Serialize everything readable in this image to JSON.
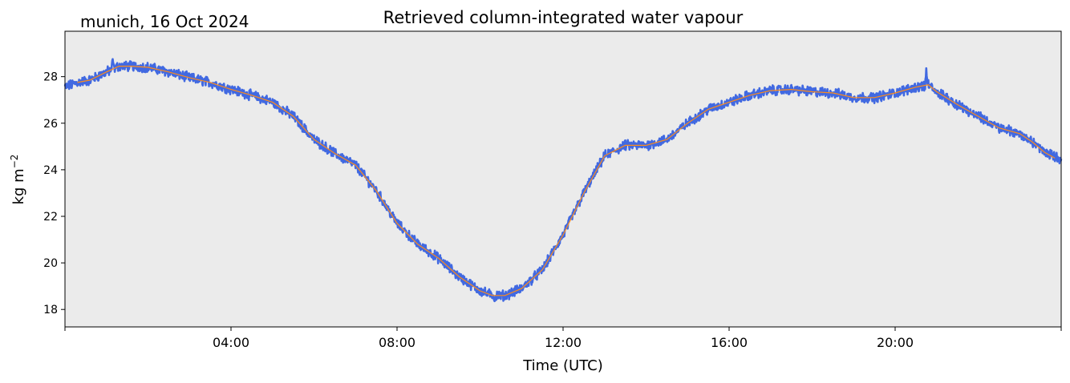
{
  "chart_data": {
    "type": "line",
    "title": "Retrieved column-integrated water vapour",
    "subtitle": "munich, 16 Oct 2024",
    "xlabel": "Time (UTC)",
    "ylabel": "kg m",
    "ylabel_superscript": "−2",
    "x_unit": "hours UTC",
    "xlim": [
      0,
      24
    ],
    "ylim": [
      17.25,
      29.95
    ],
    "x_ticks": [
      {
        "value": 0,
        "label": ""
      },
      {
        "value": 4,
        "label": "04:00"
      },
      {
        "value": 8,
        "label": "08:00"
      },
      {
        "value": 12,
        "label": "12:00"
      },
      {
        "value": 16,
        "label": "16:00"
      },
      {
        "value": 20,
        "label": "20:00"
      },
      {
        "value": 24,
        "label": ""
      }
    ],
    "y_ticks": [
      {
        "value": 18,
        "label": "18"
      },
      {
        "value": 20,
        "label": "20"
      },
      {
        "value": 22,
        "label": "22"
      },
      {
        "value": 24,
        "label": "24"
      },
      {
        "value": 26,
        "label": "26"
      },
      {
        "value": 28,
        "label": "28"
      }
    ],
    "grid": false,
    "background_color": "#ebebeb",
    "series": [
      {
        "style": "noisy band",
        "color": "#4169e1",
        "noise": 0.18,
        "spikes": [
          {
            "x": 1.15,
            "y": 29.0
          },
          {
            "x": 20.75,
            "y": 28.45
          },
          {
            "x": 10.35,
            "y": 18.2
          }
        ],
        "x": [
          0.0,
          0.3,
          0.6,
          1.0,
          1.3,
          1.6,
          2.0,
          2.5,
          3.0,
          3.5,
          4.0,
          4.5,
          5.0,
          5.5,
          6.0,
          6.5,
          7.0,
          7.5,
          8.0,
          8.5,
          9.0,
          9.5,
          10.0,
          10.3,
          10.6,
          11.0,
          11.5,
          12.0,
          12.5,
          13.0,
          13.5,
          14.0,
          14.5,
          15.0,
          15.5,
          16.0,
          16.5,
          17.0,
          17.5,
          18.0,
          18.5,
          19.0,
          19.5,
          20.0,
          20.5,
          20.8,
          21.0,
          21.5,
          22.0,
          22.5,
          23.0,
          23.3,
          23.6,
          24.0
        ],
        "y": [
          27.55,
          27.75,
          27.85,
          28.2,
          28.45,
          28.45,
          28.4,
          28.2,
          27.95,
          27.75,
          27.45,
          27.2,
          26.9,
          26.3,
          25.3,
          24.7,
          24.2,
          23.1,
          21.7,
          20.8,
          20.2,
          19.4,
          18.8,
          18.6,
          18.6,
          18.9,
          19.7,
          21.2,
          23.0,
          24.6,
          25.05,
          25.05,
          25.3,
          26.0,
          26.6,
          26.9,
          27.2,
          27.4,
          27.45,
          27.35,
          27.3,
          27.1,
          27.1,
          27.3,
          27.55,
          27.65,
          27.35,
          26.8,
          26.3,
          25.8,
          25.55,
          25.2,
          24.75,
          24.45
        ]
      },
      {
        "style": "smoothed line",
        "color": "#ff8c1a",
        "x": [
          0.3,
          0.6,
          1.0,
          1.3,
          1.6,
          2.0,
          2.5,
          3.0,
          3.5,
          4.0,
          4.5,
          5.0,
          5.5,
          6.0,
          6.5,
          7.0,
          7.5,
          8.0,
          8.5,
          9.0,
          9.5,
          10.0,
          10.3,
          10.6,
          11.0,
          11.5,
          12.0,
          12.5,
          13.0,
          13.5,
          14.0,
          14.5,
          15.0,
          15.5,
          16.0,
          16.5,
          17.0,
          17.5,
          18.0,
          18.5,
          19.0,
          19.5,
          20.0,
          20.5,
          20.8,
          21.0,
          21.5,
          22.0,
          22.5,
          23.0,
          23.3,
          23.6,
          23.85
        ],
        "y": [
          27.75,
          27.85,
          28.2,
          28.45,
          28.45,
          28.4,
          28.2,
          27.95,
          27.75,
          27.45,
          27.2,
          26.9,
          26.3,
          25.3,
          24.7,
          24.2,
          23.1,
          21.7,
          20.8,
          20.2,
          19.4,
          18.8,
          18.6,
          18.6,
          18.9,
          19.7,
          21.2,
          23.0,
          24.6,
          25.05,
          25.05,
          25.3,
          26.0,
          26.6,
          26.9,
          27.2,
          27.4,
          27.45,
          27.35,
          27.3,
          27.1,
          27.1,
          27.3,
          27.55,
          27.65,
          27.35,
          26.8,
          26.3,
          25.8,
          25.55,
          25.2,
          24.75,
          24.5
        ]
      }
    ]
  }
}
